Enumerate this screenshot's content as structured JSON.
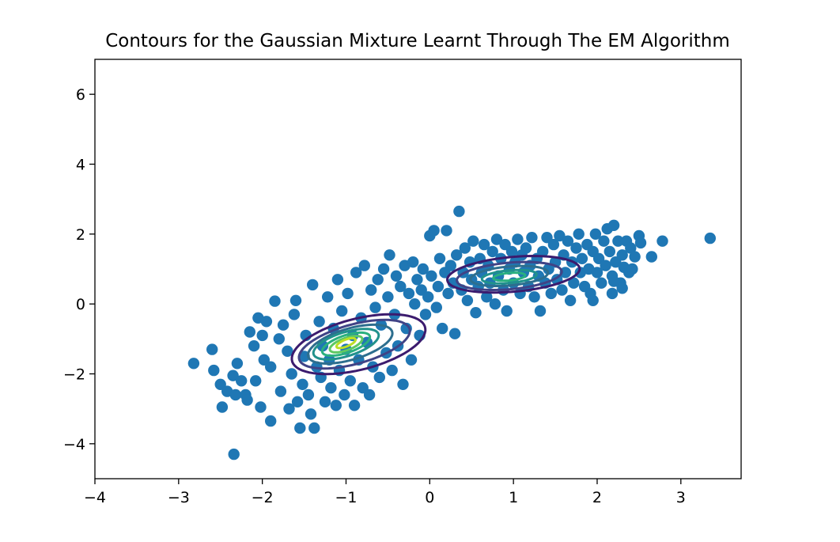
{
  "chart_data": {
    "type": "scatter",
    "title": "Contours for the Gaussian Mixture Learnt Through The EM Algorithm",
    "xlabel": "",
    "ylabel": "",
    "xlim": [
      -4,
      3.72
    ],
    "ylim": [
      -5,
      7
    ],
    "xticks": [
      -4,
      -3,
      -2,
      -1,
      0,
      1,
      2,
      3
    ],
    "xtick_labels": [
      "−4",
      "−3",
      "−2",
      "−1",
      "0",
      "1",
      "2",
      "3"
    ],
    "yticks": [
      -4,
      -2,
      0,
      2,
      4,
      6
    ],
    "ytick_labels": [
      "−4",
      "−2",
      "0",
      "2",
      "4",
      "6"
    ],
    "grid": false,
    "legend": "none",
    "point_color": "#1f77b4",
    "series": [
      {
        "points": [
          [
            -2.82,
            -1.7
          ],
          [
            -2.6,
            -1.3
          ],
          [
            -2.58,
            -1.9
          ],
          [
            -2.5,
            -2.3
          ],
          [
            -2.48,
            -2.95
          ],
          [
            -2.42,
            -2.5
          ],
          [
            -2.35,
            -2.05
          ],
          [
            -2.34,
            -4.3
          ],
          [
            -2.32,
            -2.6
          ],
          [
            -2.3,
            -1.7
          ],
          [
            -2.25,
            -2.2
          ],
          [
            -2.2,
            -2.6
          ],
          [
            -2.18,
            -2.75
          ],
          [
            -2.15,
            -0.8
          ],
          [
            -2.1,
            -1.2
          ],
          [
            -2.08,
            -2.2
          ],
          [
            -2.05,
            -0.4
          ],
          [
            -2.02,
            -2.95
          ],
          [
            -2.0,
            -0.9
          ],
          [
            -1.98,
            -1.6
          ],
          [
            -1.95,
            -0.5
          ],
          [
            -1.9,
            -1.8
          ],
          [
            -1.9,
            -3.35
          ],
          [
            -1.85,
            0.08
          ],
          [
            -1.8,
            -1.0
          ],
          [
            -1.78,
            -2.5
          ],
          [
            -1.75,
            -0.6
          ],
          [
            -1.7,
            -1.35
          ],
          [
            -1.68,
            -3.0
          ],
          [
            -1.65,
            -2.0
          ],
          [
            -1.62,
            -0.3
          ],
          [
            -1.6,
            0.1
          ],
          [
            -1.58,
            -2.8
          ],
          [
            -1.55,
            -3.55
          ],
          [
            -1.52,
            -2.3
          ],
          [
            -1.5,
            -1.5
          ],
          [
            -1.48,
            -0.9
          ],
          [
            -1.45,
            -2.6
          ],
          [
            -1.42,
            -3.15
          ],
          [
            -1.4,
            0.55
          ],
          [
            -1.38,
            -3.55
          ],
          [
            -1.35,
            -1.8
          ],
          [
            -1.32,
            -0.5
          ],
          [
            -1.3,
            -2.1
          ],
          [
            -1.28,
            -1.2
          ],
          [
            -1.25,
            -2.8
          ],
          [
            -1.22,
            0.2
          ],
          [
            -1.2,
            -1.6
          ],
          [
            -1.18,
            -2.4
          ],
          [
            -1.15,
            -0.7
          ],
          [
            -1.12,
            -2.9
          ],
          [
            -1.1,
            0.7
          ],
          [
            -1.08,
            -1.9
          ],
          [
            -1.05,
            -0.2
          ],
          [
            -1.02,
            -2.6
          ],
          [
            -1.0,
            -1.3
          ],
          [
            -0.98,
            0.3
          ],
          [
            -0.95,
            -2.2
          ],
          [
            -0.92,
            -0.9
          ],
          [
            -0.9,
            -2.9
          ],
          [
            -0.88,
            0.9
          ],
          [
            -0.85,
            -1.6
          ],
          [
            -0.82,
            -0.4
          ],
          [
            -0.8,
            -2.4
          ],
          [
            -0.78,
            1.1
          ],
          [
            -0.75,
            -1.1
          ],
          [
            -0.72,
            -2.6
          ],
          [
            -0.7,
            0.4
          ],
          [
            -0.68,
            -1.8
          ],
          [
            -0.65,
            -0.1
          ],
          [
            -0.62,
            0.7
          ],
          [
            -0.6,
            -2.1
          ],
          [
            -0.58,
            -0.6
          ],
          [
            -0.55,
            1.0
          ],
          [
            -0.52,
            -1.4
          ],
          [
            -0.5,
            0.2
          ],
          [
            -0.48,
            1.4
          ],
          [
            -0.45,
            -1.9
          ],
          [
            -0.42,
            -0.3
          ],
          [
            -0.4,
            0.8
          ],
          [
            -0.38,
            -1.2
          ],
          [
            -0.35,
            0.5
          ],
          [
            -0.32,
            -2.3
          ],
          [
            -0.3,
            1.1
          ],
          [
            -0.28,
            -0.7
          ],
          [
            -0.25,
            0.3
          ],
          [
            -0.22,
            -1.6
          ],
          [
            -0.2,
            1.2
          ],
          [
            -0.18,
            0.0
          ],
          [
            -0.15,
            0.7
          ],
          [
            -0.12,
            -0.9
          ],
          [
            -0.1,
            0.4
          ],
          [
            -0.08,
            1.0
          ],
          [
            -0.05,
            -0.3
          ],
          [
            -0.02,
            0.2
          ],
          [
            0.0,
            1.95
          ],
          [
            0.02,
            0.8
          ],
          [
            0.05,
            2.1
          ],
          [
            0.08,
            -0.1
          ],
          [
            0.1,
            0.5
          ],
          [
            0.12,
            1.3
          ],
          [
            0.15,
            -0.7
          ],
          [
            0.18,
            0.9
          ],
          [
            0.2,
            2.1
          ],
          [
            0.22,
            0.3
          ],
          [
            0.25,
            1.1
          ],
          [
            0.28,
            0.6
          ],
          [
            0.3,
            -0.85
          ],
          [
            0.32,
            1.4
          ],
          [
            0.35,
            2.65
          ],
          [
            0.38,
            0.4
          ],
          [
            0.4,
            0.9
          ],
          [
            0.42,
            1.6
          ],
          [
            0.45,
            0.1
          ],
          [
            0.48,
            1.2
          ],
          [
            0.5,
            0.7
          ],
          [
            0.52,
            1.8
          ],
          [
            0.55,
            -0.25
          ],
          [
            0.58,
            0.5
          ],
          [
            0.6,
            1.3
          ],
          [
            0.62,
            0.9
          ],
          [
            0.65,
            1.7
          ],
          [
            0.68,
            0.2
          ],
          [
            0.7,
            1.1
          ],
          [
            0.72,
            0.6
          ],
          [
            0.75,
            1.5
          ],
          [
            0.78,
            0.0
          ],
          [
            0.8,
            1.85
          ],
          [
            0.82,
            0.8
          ],
          [
            0.85,
            1.3
          ],
          [
            0.88,
            0.4
          ],
          [
            0.9,
            1.7
          ],
          [
            0.92,
            -0.2
          ],
          [
            0.95,
            1.0
          ],
          [
            0.98,
            1.5
          ],
          [
            1.0,
            0.6
          ],
          [
            1.02,
            1.2
          ],
          [
            1.05,
            1.85
          ],
          [
            1.08,
            0.3
          ],
          [
            1.1,
            1.4
          ],
          [
            1.12,
            0.9
          ],
          [
            1.15,
            1.6
          ],
          [
            1.18,
            0.5
          ],
          [
            1.2,
            1.1
          ],
          [
            1.22,
            1.9
          ],
          [
            1.25,
            0.2
          ],
          [
            1.28,
            1.3
          ],
          [
            1.3,
            0.8
          ],
          [
            1.32,
            -0.2
          ],
          [
            1.35,
            1.5
          ],
          [
            1.38,
            0.6
          ],
          [
            1.4,
            1.9
          ],
          [
            1.42,
            1.0
          ],
          [
            1.45,
            0.3
          ],
          [
            1.48,
            1.7
          ],
          [
            1.5,
            1.2
          ],
          [
            1.52,
            0.7
          ],
          [
            1.55,
            1.95
          ],
          [
            1.58,
            0.4
          ],
          [
            1.6,
            1.4
          ],
          [
            1.62,
            0.9
          ],
          [
            1.65,
            1.8
          ],
          [
            1.68,
            0.1
          ],
          [
            1.7,
            1.2
          ],
          [
            1.72,
            0.6
          ],
          [
            1.75,
            1.6
          ],
          [
            1.78,
            2.0
          ],
          [
            1.8,
            0.9
          ],
          [
            1.82,
            1.3
          ],
          [
            1.85,
            0.5
          ],
          [
            1.88,
            1.7
          ],
          [
            1.9,
            1.0
          ],
          [
            1.92,
            0.3
          ],
          [
            1.95,
            1.5
          ],
          [
            1.98,
            2.0
          ],
          [
            2.0,
            0.9
          ],
          [
            2.02,
            1.3
          ],
          [
            2.05,
            0.6
          ],
          [
            2.08,
            1.8
          ],
          [
            2.1,
            1.1
          ],
          [
            2.12,
            2.15
          ],
          [
            2.15,
            1.5
          ],
          [
            2.18,
            0.8
          ],
          [
            2.2,
            2.25
          ],
          [
            2.22,
            1.2
          ],
          [
            2.25,
            1.8
          ],
          [
            2.28,
            0.6
          ],
          [
            2.3,
            1.4
          ],
          [
            2.32,
            1.05
          ],
          [
            2.35,
            1.8
          ],
          [
            2.38,
            0.9
          ],
          [
            2.4,
            1.6
          ],
          [
            2.42,
            1.0
          ],
          [
            2.45,
            1.35
          ],
          [
            2.5,
            1.95
          ],
          [
            2.52,
            1.75
          ],
          [
            2.65,
            1.35
          ],
          [
            2.78,
            1.8
          ],
          [
            3.35,
            1.88
          ],
          [
            2.2,
            0.65
          ],
          [
            2.18,
            0.3
          ],
          [
            1.95,
            0.1
          ],
          [
            2.3,
            0.45
          ]
        ]
      }
    ],
    "contour_levels": [
      {
        "color": "#3b1b6e",
        "rings": [
          {
            "cx": -0.85,
            "cy": -1.15,
            "a": 1.55,
            "b": 0.78,
            "angle": 24
          },
          {
            "cx": 1.0,
            "cy": 0.85,
            "a": 1.45,
            "b": 0.55,
            "angle": 8
          }
        ]
      },
      {
        "color": "#404386",
        "rings": [
          {
            "cx": -0.9,
            "cy": -1.15,
            "a": 1.3,
            "b": 0.6,
            "angle": 25
          },
          {
            "cx": 0.95,
            "cy": 0.8,
            "a": 1.15,
            "b": 0.42,
            "angle": 8
          }
        ]
      },
      {
        "color": "#2d6e8e",
        "rings": [
          {
            "cx": -0.95,
            "cy": -1.15,
            "a": 1.0,
            "b": 0.47,
            "angle": 27
          },
          {
            "cx": 0.95,
            "cy": 0.8,
            "a": 0.85,
            "b": 0.3,
            "angle": 8
          }
        ]
      },
      {
        "color": "#21918c",
        "rings": [
          {
            "cx": -1.0,
            "cy": -1.15,
            "a": 0.78,
            "b": 0.36,
            "angle": 28
          },
          {
            "cx": 0.95,
            "cy": 0.78,
            "a": 0.6,
            "b": 0.2,
            "angle": 8
          }
        ]
      },
      {
        "color": "#2ab07f",
        "rings": [
          {
            "cx": -1.0,
            "cy": -1.15,
            "a": 0.58,
            "b": 0.26,
            "angle": 30
          },
          {
            "cx": 0.95,
            "cy": 0.78,
            "a": 0.35,
            "b": 0.12,
            "angle": 8
          }
        ]
      },
      {
        "color": "#5ec962",
        "rings": [
          {
            "cx": -1.0,
            "cy": -1.15,
            "a": 0.4,
            "b": 0.18,
            "angle": 32
          }
        ]
      },
      {
        "color": "#bddf26",
        "rings": [
          {
            "cx": -1.0,
            "cy": -1.12,
            "a": 0.24,
            "b": 0.1,
            "angle": 34
          }
        ]
      }
    ]
  }
}
